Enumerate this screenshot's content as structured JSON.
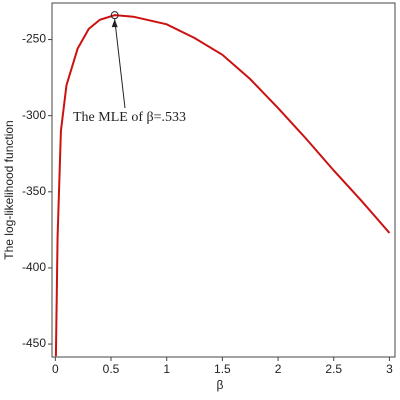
{
  "chart_data": {
    "type": "line",
    "xlabel": "β",
    "ylabel": "The log-likelihood function",
    "x": [
      0.005,
      0.02,
      0.05,
      0.1,
      0.2,
      0.3,
      0.4,
      0.533,
      0.7,
      1,
      1.25,
      1.5,
      1.75,
      2,
      2.25,
      2.5,
      2.75,
      3
    ],
    "series": [
      {
        "color": "#cc1111",
        "values": [
          -458,
          -380,
          -310,
          -280,
          -256,
          -243,
          -237,
          -234,
          -235,
          -240,
          -249,
          -260,
          -276,
          -295,
          -315,
          -336,
          -356,
          -377
        ]
      }
    ],
    "xlim": [
      -0.03,
      3.05
    ],
    "ylim": [
      -458.5,
      -226
    ],
    "xticks": [
      0,
      0.5,
      1,
      1.5,
      2,
      2.5,
      3
    ],
    "yticks": [
      -250,
      -300,
      -350,
      -400,
      -450
    ],
    "annotation": {
      "text": "The MLE of β=.533",
      "x": 0.533,
      "y": -234
    }
  }
}
